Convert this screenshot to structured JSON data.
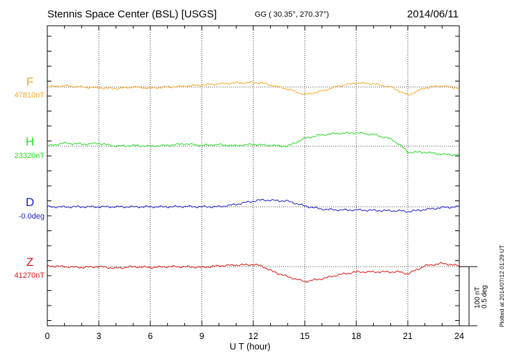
{
  "header": {
    "title": "Stennis Space Center (BSL)  [USGS]",
    "coords": "GG ( 30.35°, 270.37°)",
    "date": "2014/06/11"
  },
  "footer": {
    "xlabel": "U T (hour)",
    "plotted": "Plotted at 2014/07/12 01:29 UT",
    "scale_nt": "100 nT",
    "scale_deg": "0.5 deg"
  },
  "chart_data": {
    "type": "line",
    "xlabel": "U T (hour)",
    "xlim": [
      0,
      24
    ],
    "x_ticks": [
      "0",
      "3",
      "6",
      "9",
      "12",
      "15",
      "18",
      "21",
      "24"
    ],
    "grid": true,
    "scale_bar": {
      "nT": 100,
      "deg": 0.5
    },
    "x": [
      0,
      1,
      2,
      3,
      4,
      5,
      6,
      7,
      8,
      9,
      10,
      11,
      12,
      12.5,
      13,
      14,
      15,
      16,
      17,
      18,
      19,
      20,
      20.5,
      21,
      22,
      23,
      24
    ],
    "series": [
      {
        "name": "F",
        "label": "F",
        "baseline_label": "47810nT",
        "unit": "nT",
        "color": "#f5a623",
        "values": [
          47811,
          47813,
          47810,
          47808,
          47806,
          47810,
          47807,
          47810,
          47812,
          47815,
          47818,
          47820,
          47821,
          47820,
          47815,
          47805,
          47791,
          47800,
          47813,
          47820,
          47818,
          47810,
          47800,
          47790,
          47808,
          47813,
          47807
        ]
      },
      {
        "name": "H",
        "label": "H",
        "baseline_label": "23320nT",
        "unit": "nT",
        "color": "#22dd22",
        "values": [
          23320,
          23328,
          23325,
          23327,
          23320,
          23322,
          23320,
          23322,
          23326,
          23322,
          23324,
          23321,
          23325,
          23323,
          23322,
          23320,
          23340,
          23348,
          23352,
          23353,
          23349,
          23338,
          23325,
          23305,
          23305,
          23300,
          23298
        ]
      },
      {
        "name": "D",
        "label": "D",
        "baseline_label": "-0.0deg",
        "unit": "deg",
        "color": "#1a1acc",
        "values": [
          0.0,
          -0.002,
          0.0,
          -0.001,
          0.0,
          -0.001,
          0.0,
          0.0,
          0.003,
          0.0,
          0.0,
          0.03,
          0.07,
          0.085,
          0.08,
          0.07,
          0.01,
          -0.03,
          -0.04,
          -0.04,
          -0.045,
          -0.05,
          -0.05,
          -0.06,
          -0.035,
          -0.01,
          0.0
        ]
      },
      {
        "name": "Z",
        "label": "Z",
        "baseline_label": "41270nT",
        "unit": "nT",
        "color": "#dd1111",
        "values": [
          41272,
          41270,
          41268,
          41270,
          41266,
          41270,
          41268,
          41270,
          41270,
          41268,
          41272,
          41274,
          41275,
          41272,
          41260,
          41245,
          41233,
          41240,
          41250,
          41257,
          41257,
          41257,
          41257,
          41252,
          41272,
          41278,
          41272
        ]
      }
    ]
  }
}
